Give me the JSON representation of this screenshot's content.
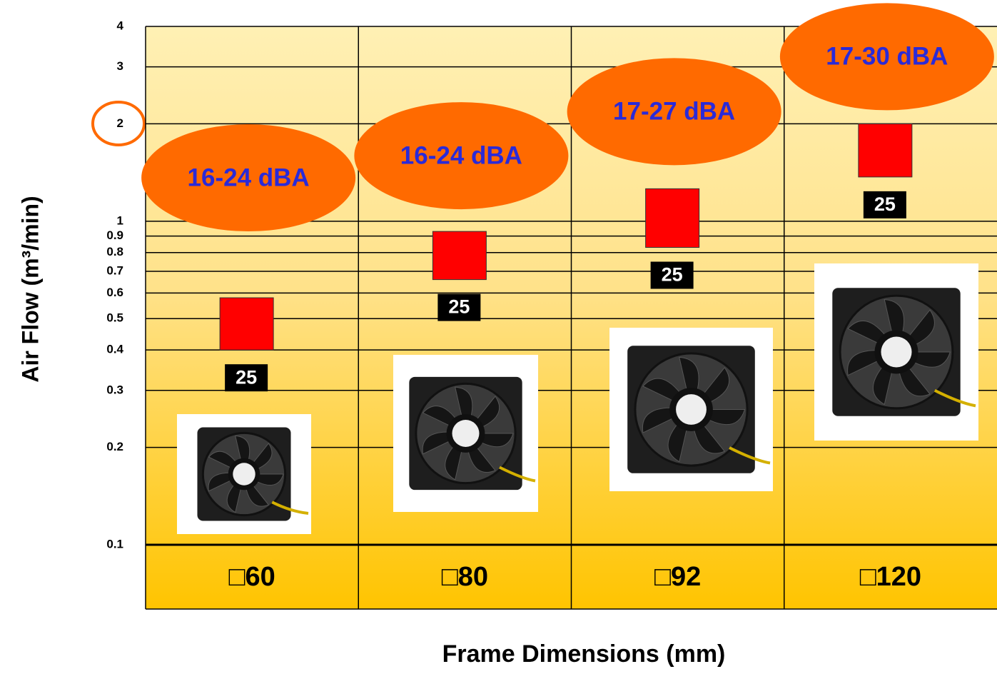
{
  "chart_data": {
    "type": "floating-bar",
    "y_label": "Air Flow (m³/min)",
    "x_label": "Frame Dimensions (mm)",
    "categories": [
      "□60",
      "□80",
      "□92",
      "□120"
    ],
    "low": [
      0.4,
      0.66,
      0.83,
      1.37
    ],
    "high": [
      0.58,
      0.93,
      1.26,
      2.0
    ],
    "bar_labels": [
      "25",
      "25",
      "25",
      "25"
    ],
    "noise_labels": [
      "16-24 dBA",
      "16-24 dBA",
      "17-27 dBA",
      "17-30 dBA"
    ],
    "color": "#ff0000",
    "ylim": [
      0.1,
      4
    ],
    "yticks": [
      0.1,
      0.2,
      0.3,
      0.4,
      0.5,
      0.6,
      0.7,
      0.8,
      0.9,
      1,
      2,
      3,
      4
    ],
    "log_scale": true,
    "grid": true
  }
}
